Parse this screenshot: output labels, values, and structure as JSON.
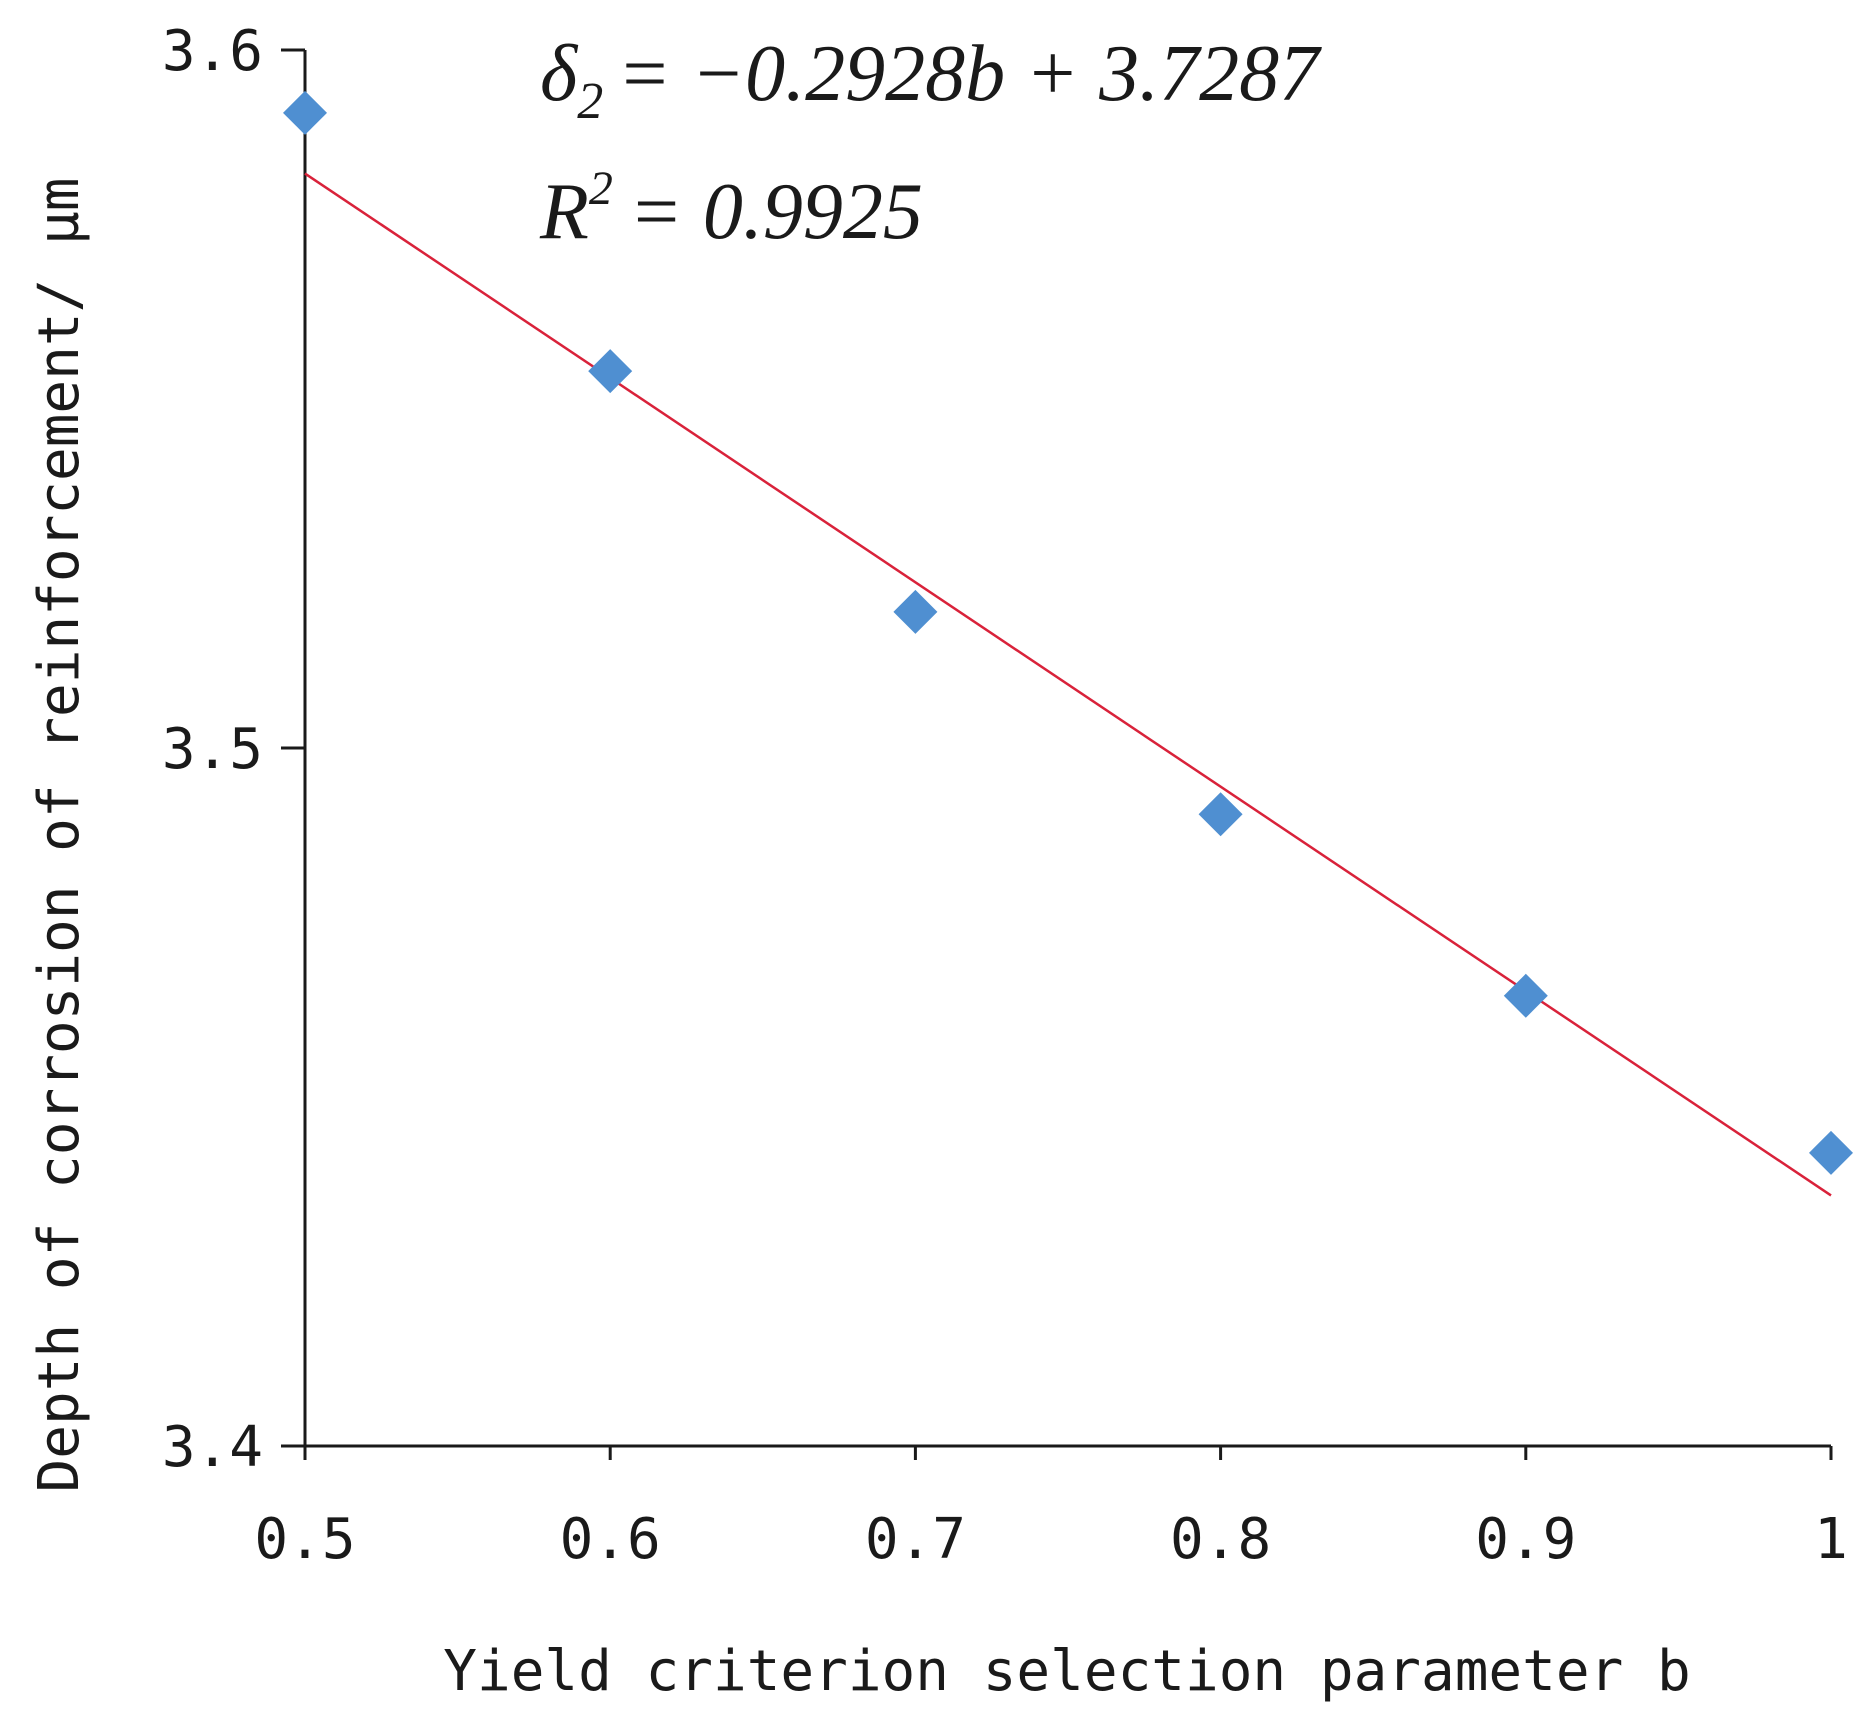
{
  "chart_data": {
    "type": "scatter",
    "xlabel": "Yield criterion selection parameter b",
    "ylabel": "Depth of corrosion of reinforcement/ μm",
    "xlim": [
      0.5,
      1.0
    ],
    "ylim": [
      3.4,
      3.6
    ],
    "x_ticks": [
      0.5,
      0.6,
      0.7,
      0.8,
      0.9,
      1.0
    ],
    "x_tick_labels": [
      "0.5",
      "0.6",
      "0.7",
      "0.8",
      "0.9",
      "1"
    ],
    "y_ticks": [
      3.4,
      3.5,
      3.6
    ],
    "y_tick_labels": [
      "3.4",
      "3.5",
      "3.6"
    ],
    "grid": false,
    "legend": "none",
    "series": [
      {
        "x": [
          0.5,
          0.6,
          0.7,
          0.8,
          0.9,
          1.0
        ],
        "y": [
          3.591,
          3.554,
          3.5195,
          3.4905,
          3.4645,
          3.442
        ],
        "marker": "diamond",
        "color": "#4f8fd1"
      }
    ],
    "trendline": {
      "slope": -0.2928,
      "intercept": 3.7287,
      "color": "#d9223a",
      "equation_symbol": "δ",
      "equation_subscript": "2",
      "equation_rhs": "= −0.2928b + 3.7287",
      "r2_symbol": "R",
      "r2_superscript": "2",
      "r2_rhs": "= 0.9925"
    }
  }
}
